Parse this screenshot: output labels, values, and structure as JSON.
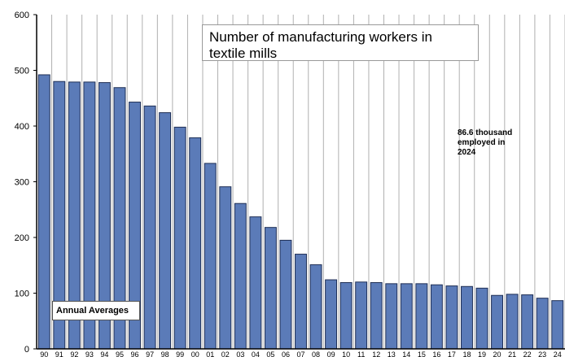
{
  "chart_data": {
    "type": "bar",
    "title": "Number of manufacturing workers in textile mills",
    "annotation": "86.6 thousand employed in 2024",
    "legend_label": "Annual Averages",
    "xlabel": "",
    "ylabel": "",
    "ylim": [
      0,
      600
    ],
    "yticks": [
      0,
      100,
      200,
      300,
      400,
      500,
      600
    ],
    "grid": true,
    "categories": [
      "90",
      "91",
      "92",
      "93",
      "94",
      "95",
      "96",
      "97",
      "98",
      "99",
      "00",
      "01",
      "02",
      "03",
      "04",
      "05",
      "06",
      "07",
      "08",
      "09",
      "10",
      "11",
      "12",
      "13",
      "14",
      "15",
      "16",
      "17",
      "18",
      "19",
      "20",
      "21",
      "22",
      "23",
      "24"
    ],
    "values": [
      492,
      480,
      479,
      479,
      478,
      469,
      443,
      436,
      424,
      398,
      379,
      333,
      291,
      261,
      237,
      218,
      195,
      170,
      151,
      124,
      119,
      120,
      119,
      117,
      117,
      117,
      115,
      113,
      112,
      109,
      96,
      98,
      97,
      91,
      86.6
    ],
    "colors": {
      "bar": "#5B7BB8",
      "bar_edge": "#1F2F55",
      "grid": "#B0B0B0",
      "axis": "#000000"
    }
  }
}
